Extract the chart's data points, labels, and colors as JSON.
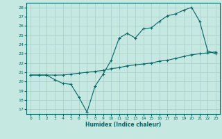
{
  "title": "",
  "xlabel": "Humidex (Indice chaleur)",
  "ylabel": "",
  "background_color": "#c5e8e0",
  "line_color": "#006666",
  "grid_color": "#a8ccc8",
  "xlim": [
    -0.5,
    23.5
  ],
  "ylim": [
    16.5,
    28.5
  ],
  "xticks": [
    0,
    1,
    2,
    3,
    4,
    5,
    6,
    7,
    8,
    9,
    10,
    11,
    12,
    13,
    14,
    15,
    16,
    17,
    18,
    19,
    20,
    21,
    22,
    23
  ],
  "yticks": [
    17,
    18,
    19,
    20,
    21,
    22,
    23,
    24,
    25,
    26,
    27,
    28
  ],
  "series1_x": [
    0,
    1,
    2,
    3,
    4,
    5,
    6,
    7,
    8,
    9,
    10,
    11,
    12,
    13,
    14,
    15,
    16,
    17,
    18,
    19,
    20,
    21,
    22,
    23
  ],
  "series1_y": [
    20.7,
    20.7,
    20.7,
    20.2,
    19.8,
    19.7,
    18.3,
    16.7,
    19.5,
    20.8,
    22.3,
    24.7,
    25.2,
    24.7,
    25.7,
    25.8,
    26.5,
    27.1,
    27.3,
    27.7,
    28.0,
    26.5,
    23.3,
    23.0
  ],
  "series2_x": [
    0,
    1,
    2,
    3,
    4,
    5,
    6,
    7,
    8,
    9,
    10,
    11,
    12,
    13,
    14,
    15,
    16,
    17,
    18,
    19,
    20,
    21,
    22,
    23
  ],
  "series2_y": [
    20.7,
    20.7,
    20.7,
    20.7,
    20.7,
    20.8,
    20.9,
    21.0,
    21.1,
    21.2,
    21.4,
    21.5,
    21.7,
    21.8,
    21.9,
    22.0,
    22.2,
    22.3,
    22.5,
    22.7,
    22.9,
    23.0,
    23.1,
    23.2
  ]
}
